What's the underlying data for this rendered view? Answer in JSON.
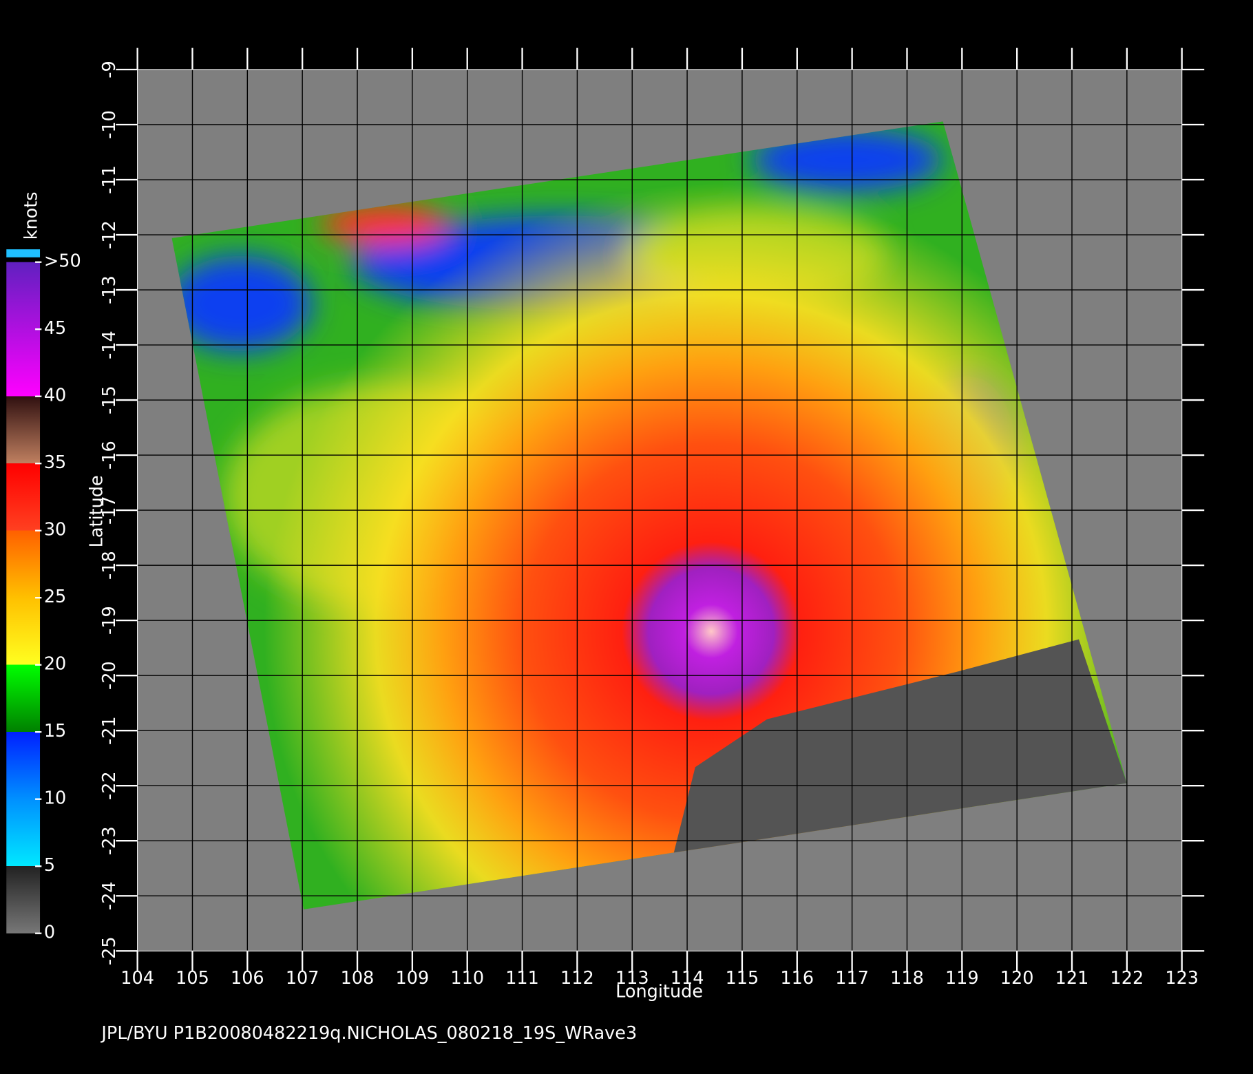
{
  "chart_data": {
    "type": "map",
    "x_label": "Longitude",
    "y_label": "Latitude",
    "xlim": [
      104,
      123
    ],
    "ylim": [
      -25,
      -9
    ],
    "xticks": [
      104,
      105,
      106,
      107,
      108,
      109,
      110,
      111,
      112,
      113,
      114,
      115,
      116,
      117,
      118,
      119,
      120,
      121,
      122,
      123
    ],
    "yticks": [
      -9,
      -10,
      -11,
      -12,
      -13,
      -14,
      -15,
      -16,
      -17,
      -18,
      -19,
      -20,
      -21,
      -22,
      -23,
      -24,
      -25
    ],
    "grid": true,
    "colorbar": {
      "label": "knots",
      "lim": [
        0,
        50
      ],
      "ticks": [
        0,
        5,
        10,
        15,
        20,
        25,
        30,
        35,
        40,
        45,
        {
          "value": 50,
          "label": ">50"
        }
      ]
    },
    "footer": "JPL/BYU  P1B20080482219q.NICHOLAS_080218_19S_WRave3"
  }
}
